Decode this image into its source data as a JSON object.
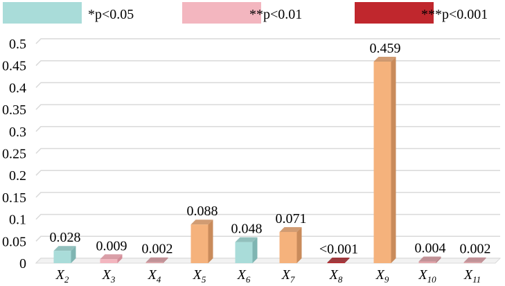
{
  "chart_data": {
    "type": "bar",
    "title": "",
    "xlabel": "",
    "ylabel": "",
    "ylim": [
      0,
      0.5
    ],
    "yticks": [
      0,
      0.05,
      0.1,
      0.15,
      0.2,
      0.25,
      0.3,
      0.35,
      0.4,
      0.45,
      0.5
    ],
    "ytick_labels": [
      "0",
      "0.05",
      "0.1",
      "0.15",
      "0.2",
      "0.25",
      "0.3",
      "0.35",
      "0.4",
      "0.45",
      "0.5"
    ],
    "grid": true,
    "legend_position": "top",
    "legend": [
      {
        "label": "*p<0.05",
        "color": "#a9dcd9"
      },
      {
        "label": "**p<0.01",
        "color": "#f3b6bf"
      },
      {
        "label": "***p<0.001",
        "color": "#c0272d"
      }
    ],
    "categories": [
      {
        "base": "X",
        "sub": "2"
      },
      {
        "base": "X",
        "sub": "3"
      },
      {
        "base": "X",
        "sub": "4"
      },
      {
        "base": "X",
        "sub": "5"
      },
      {
        "base": "X",
        "sub": "6"
      },
      {
        "base": "X",
        "sub": "7"
      },
      {
        "base": "X",
        "sub": "8"
      },
      {
        "base": "X",
        "sub": "9"
      },
      {
        "base": "X",
        "sub": "10"
      },
      {
        "base": "X",
        "sub": "11"
      }
    ],
    "values": [
      0.028,
      0.009,
      0.002,
      0.088,
      0.048,
      0.071,
      0.001,
      0.459,
      0.004,
      0.002
    ],
    "data_labels": [
      "0.028",
      "0.009",
      "0.002",
      "0.088",
      "0.048",
      "0.071",
      "<0.001",
      "0.459",
      "0.004",
      "0.002"
    ],
    "bar_colors": [
      "#a9dcd9",
      "#f3b6bf",
      "#e2a6ab",
      "#f5b27c",
      "#a9dcd9",
      "#f5b27c",
      "#c0272d",
      "#f5b27c",
      "#e2a6ab",
      "#e2a6ab"
    ],
    "bar_side_colors": [
      "#7fb5b2",
      "#d48e99",
      "#b98187",
      "#c98b5b",
      "#7fb5b2",
      "#c98b5b",
      "#8f1a1f",
      "#c98b5b",
      "#b98187",
      "#b98187"
    ]
  }
}
